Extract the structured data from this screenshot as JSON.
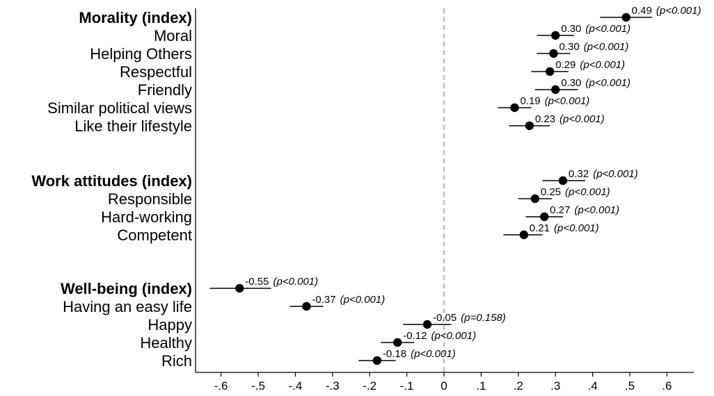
{
  "chart_data": {
    "type": "scatter",
    "subtype": "coefficient-plot",
    "title": "",
    "xlabel": "",
    "ylabel": "",
    "xlim": [
      -0.67,
      0.67
    ],
    "x_ticks": [
      "-.6",
      "-.5",
      "-.4",
      "-.3",
      "-.2",
      "-.1",
      "0",
      ".1",
      ".2",
      ".3",
      ".4",
      ".5",
      ".6"
    ],
    "x_tick_values": [
      -0.6,
      -0.5,
      -0.4,
      -0.3,
      -0.2,
      -0.1,
      0,
      0.1,
      0.2,
      0.3,
      0.4,
      0.5,
      0.6
    ],
    "reference_line": {
      "x": 0,
      "style": "dashed"
    },
    "grid": false,
    "rows": [
      {
        "label": "Morality (index)",
        "bold": true,
        "value": 0.49,
        "ci": [
          0.42,
          0.56
        ],
        "value_text": "0.49",
        "p_text": "(p<0.001)"
      },
      {
        "label": "Moral",
        "bold": false,
        "value": 0.3,
        "ci": [
          0.25,
          0.35
        ],
        "value_text": "0.30",
        "p_text": "(p<0.001)"
      },
      {
        "label": "Helping Others",
        "bold": false,
        "value": 0.295,
        "ci": [
          0.25,
          0.34
        ],
        "value_text": "0.30",
        "p_text": "(p<0.001)"
      },
      {
        "label": "Respectful",
        "bold": false,
        "value": 0.285,
        "ci": [
          0.235,
          0.335
        ],
        "value_text": "0.29",
        "p_text": "(p<0.001)"
      },
      {
        "label": "Friendly",
        "bold": false,
        "value": 0.3,
        "ci": [
          0.245,
          0.36
        ],
        "value_text": "0.30",
        "p_text": "(p<0.001)"
      },
      {
        "label": "Similar political views",
        "bold": false,
        "value": 0.19,
        "ci": [
          0.145,
          0.235
        ],
        "value_text": "0.19",
        "p_text": "(p<0.001)"
      },
      {
        "label": "Like their lifestyle",
        "bold": false,
        "value": 0.23,
        "ci": [
          0.175,
          0.285
        ],
        "value_text": "0.23",
        "p_text": "(p<0.001)"
      },
      {
        "label": "Work attitudes (index)",
        "bold": true,
        "value": 0.32,
        "ci": [
          0.265,
          0.38
        ],
        "value_text": "0.32",
        "p_text": "(p<0.001)"
      },
      {
        "label": "Responsible",
        "bold": false,
        "value": 0.245,
        "ci": [
          0.2,
          0.29
        ],
        "value_text": "0.25",
        "p_text": "(p<0.001)"
      },
      {
        "label": "Hard-working",
        "bold": false,
        "value": 0.27,
        "ci": [
          0.22,
          0.32
        ],
        "value_text": "0.27",
        "p_text": "(p<0.001)"
      },
      {
        "label": "Competent",
        "bold": false,
        "value": 0.215,
        "ci": [
          0.16,
          0.265
        ],
        "value_text": "0.21",
        "p_text": "(p<0.001)"
      },
      {
        "label": "Well-being (index)",
        "bold": true,
        "value": -0.55,
        "ci": [
          -0.63,
          -0.465
        ],
        "value_text": "-0.55",
        "p_text": "(p<0.001)"
      },
      {
        "label": "Having an easy life",
        "bold": false,
        "value": -0.37,
        "ci": [
          -0.415,
          -0.325
        ],
        "value_text": "-0.37",
        "p_text": "(p<0.001)"
      },
      {
        "label": "Happy",
        "bold": false,
        "value": -0.045,
        "ci": [
          -0.11,
          0.02
        ],
        "value_text": "-0.05",
        "p_text": "(p=0.158)"
      },
      {
        "label": "Healthy",
        "bold": false,
        "value": -0.125,
        "ci": [
          -0.17,
          -0.08
        ],
        "value_text": "-0.12",
        "p_text": "(p<0.001)"
      },
      {
        "label": "Rich",
        "bold": false,
        "value": -0.18,
        "ci": [
          -0.23,
          -0.13
        ],
        "value_text": "-0.18",
        "p_text": "(p<0.001)"
      }
    ]
  }
}
